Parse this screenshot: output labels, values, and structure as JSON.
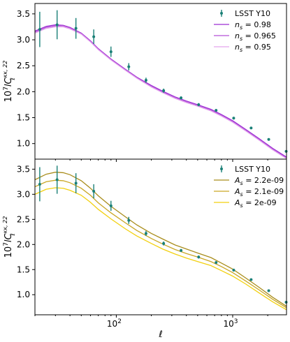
{
  "chart_data": [
    {
      "type": "line",
      "panel": "top",
      "xscale": "log",
      "xlim": [
        20,
        2900
      ],
      "ylim": [
        0.7,
        3.7
      ],
      "grid": false,
      "legend_position": "upper right",
      "ylabel_sup": "7",
      "ylabel_main": "lC",
      "ylabel_sup2": "κκ, 22",
      "ylabel_sub": "ℓ",
      "ylabel_prefix": "10",
      "yticks": [
        1.0,
        1.5,
        2.0,
        2.5,
        3.0,
        3.5
      ],
      "ytick_labels": [
        "1.0",
        "1.5",
        "2.0",
        "2.5",
        "3.0",
        "3.5"
      ],
      "series": [
        {
          "name_sym": "n",
          "name_sub": "s",
          "name_val": " = 0.98",
          "color": "#9c2fd3",
          "x": [
            20,
            25,
            30,
            35,
            40,
            50,
            60,
            70,
            90,
            120,
            150,
            200,
            250,
            320,
            400,
            500,
            650,
            800,
            1000,
            1300,
            1700,
            2200,
            2900
          ],
          "y": [
            3.17,
            3.26,
            3.29,
            3.28,
            3.24,
            3.13,
            2.98,
            2.83,
            2.63,
            2.43,
            2.28,
            2.12,
            2.01,
            1.9,
            1.82,
            1.75,
            1.66,
            1.56,
            1.44,
            1.27,
            1.09,
            0.91,
            0.74
          ]
        },
        {
          "name_sym": "n",
          "name_sub": "s",
          "name_val": " = 0.965",
          "color": "#b552d8",
          "x": [
            20,
            25,
            30,
            35,
            40,
            50,
            60,
            70,
            90,
            120,
            150,
            200,
            250,
            320,
            400,
            500,
            650,
            800,
            1000,
            1300,
            1700,
            2200,
            2900
          ],
          "y": [
            3.15,
            3.24,
            3.27,
            3.27,
            3.23,
            3.12,
            2.97,
            2.82,
            2.62,
            2.42,
            2.27,
            2.1,
            1.99,
            1.88,
            1.8,
            1.73,
            1.64,
            1.54,
            1.42,
            1.25,
            1.07,
            0.89,
            0.72
          ]
        },
        {
          "name_sym": "n",
          "name_sub": "s",
          "name_val": " = 0.95",
          "color": "#e4a3ee",
          "x": [
            20,
            25,
            30,
            35,
            40,
            50,
            60,
            70,
            90,
            120,
            150,
            200,
            250,
            320,
            400,
            500,
            650,
            800,
            1000,
            1300,
            1700,
            2200,
            2900
          ],
          "y": [
            3.13,
            3.22,
            3.25,
            3.25,
            3.21,
            3.11,
            2.96,
            2.81,
            2.61,
            2.41,
            2.26,
            2.09,
            1.98,
            1.87,
            1.79,
            1.72,
            1.63,
            1.53,
            1.41,
            1.24,
            1.06,
            0.88,
            0.71
          ]
        }
      ],
      "data_series": {
        "name": "LSST Y10",
        "color": "#1a8077",
        "x": [
          22,
          31,
          45,
          64,
          90,
          128,
          180,
          255,
          360,
          510,
          720,
          1020,
          1440,
          2040,
          2880
        ],
        "y": [
          3.2,
          3.29,
          3.22,
          3.06,
          2.77,
          2.48,
          2.22,
          2.02,
          1.88,
          1.75,
          1.64,
          1.49,
          1.3,
          1.08,
          0.85
        ],
        "err": [
          0.34,
          0.28,
          0.2,
          0.14,
          0.1,
          0.07,
          0.05,
          0.04,
          0.03,
          0.03,
          0.025,
          0.025,
          0.02,
          0.02,
          0.02
        ]
      }
    },
    {
      "type": "line",
      "panel": "bottom",
      "xscale": "log",
      "xlim": [
        20,
        2900
      ],
      "ylim": [
        0.6,
        3.7
      ],
      "grid": false,
      "legend_position": "upper right",
      "ylabel_sup": "7",
      "ylabel_main": "lC",
      "ylabel_sup2": "κκ, 22",
      "ylabel_sub": "ℓ",
      "ylabel_prefix": "10",
      "xlabel": "ℓ",
      "xticks": [
        100,
        1000
      ],
      "xtick_bases": [
        "10",
        "10"
      ],
      "xtick_exps": [
        "2",
        "3"
      ],
      "yticks": [
        1.0,
        1.5,
        2.0,
        2.5,
        3.0,
        3.5
      ],
      "ytick_labels": [
        "1.0",
        "1.5",
        "2.0",
        "2.5",
        "3.0",
        "3.5"
      ],
      "series": [
        {
          "name_sym": "A",
          "name_sub": "s",
          "name_val": " = 2.2e-09",
          "color": "#a98d1c",
          "x": [
            20,
            25,
            30,
            35,
            40,
            50,
            60,
            70,
            90,
            120,
            150,
            200,
            250,
            320,
            400,
            500,
            650,
            800,
            1000,
            1300,
            1700,
            2200,
            2900
          ],
          "y": [
            3.29,
            3.4,
            3.44,
            3.43,
            3.39,
            3.27,
            3.12,
            2.97,
            2.76,
            2.55,
            2.39,
            2.22,
            2.11,
            1.99,
            1.91,
            1.83,
            1.74,
            1.63,
            1.51,
            1.33,
            1.14,
            0.95,
            0.77
          ]
        },
        {
          "name_sym": "A",
          "name_sub": "s",
          "name_val": " = 2.1e-09",
          "color": "#c9a625",
          "x": [
            20,
            25,
            30,
            35,
            40,
            50,
            60,
            70,
            90,
            120,
            150,
            200,
            250,
            320,
            400,
            500,
            650,
            800,
            1000,
            1300,
            1700,
            2200,
            2900
          ],
          "y": [
            3.15,
            3.25,
            3.28,
            3.27,
            3.23,
            3.12,
            2.98,
            2.83,
            2.63,
            2.43,
            2.28,
            2.12,
            2.01,
            1.9,
            1.82,
            1.75,
            1.66,
            1.56,
            1.44,
            1.27,
            1.09,
            0.91,
            0.74
          ]
        },
        {
          "name_sym": "A",
          "name_sub": "s",
          "name_val": " = 2e-09",
          "color": "#f2d00f",
          "x": [
            20,
            25,
            30,
            35,
            40,
            50,
            60,
            70,
            90,
            120,
            150,
            200,
            250,
            320,
            400,
            500,
            650,
            800,
            1000,
            1300,
            1700,
            2200,
            2900
          ],
          "y": [
            3.0,
            3.1,
            3.13,
            3.12,
            3.08,
            2.98,
            2.84,
            2.7,
            2.51,
            2.31,
            2.17,
            2.02,
            1.91,
            1.81,
            1.73,
            1.66,
            1.58,
            1.48,
            1.37,
            1.21,
            1.03,
            0.86,
            0.7
          ]
        }
      ],
      "data_series": {
        "name": "LSST Y10",
        "color": "#1a8077",
        "x": [
          22,
          31,
          45,
          64,
          90,
          128,
          180,
          255,
          360,
          510,
          720,
          1020,
          1440,
          2040,
          2880
        ],
        "y": [
          3.2,
          3.29,
          3.22,
          3.06,
          2.77,
          2.48,
          2.22,
          2.02,
          1.88,
          1.75,
          1.64,
          1.49,
          1.3,
          1.08,
          0.85
        ],
        "err": [
          0.34,
          0.28,
          0.2,
          0.14,
          0.1,
          0.07,
          0.05,
          0.04,
          0.03,
          0.03,
          0.025,
          0.025,
          0.02,
          0.02,
          0.02
        ]
      }
    }
  ]
}
